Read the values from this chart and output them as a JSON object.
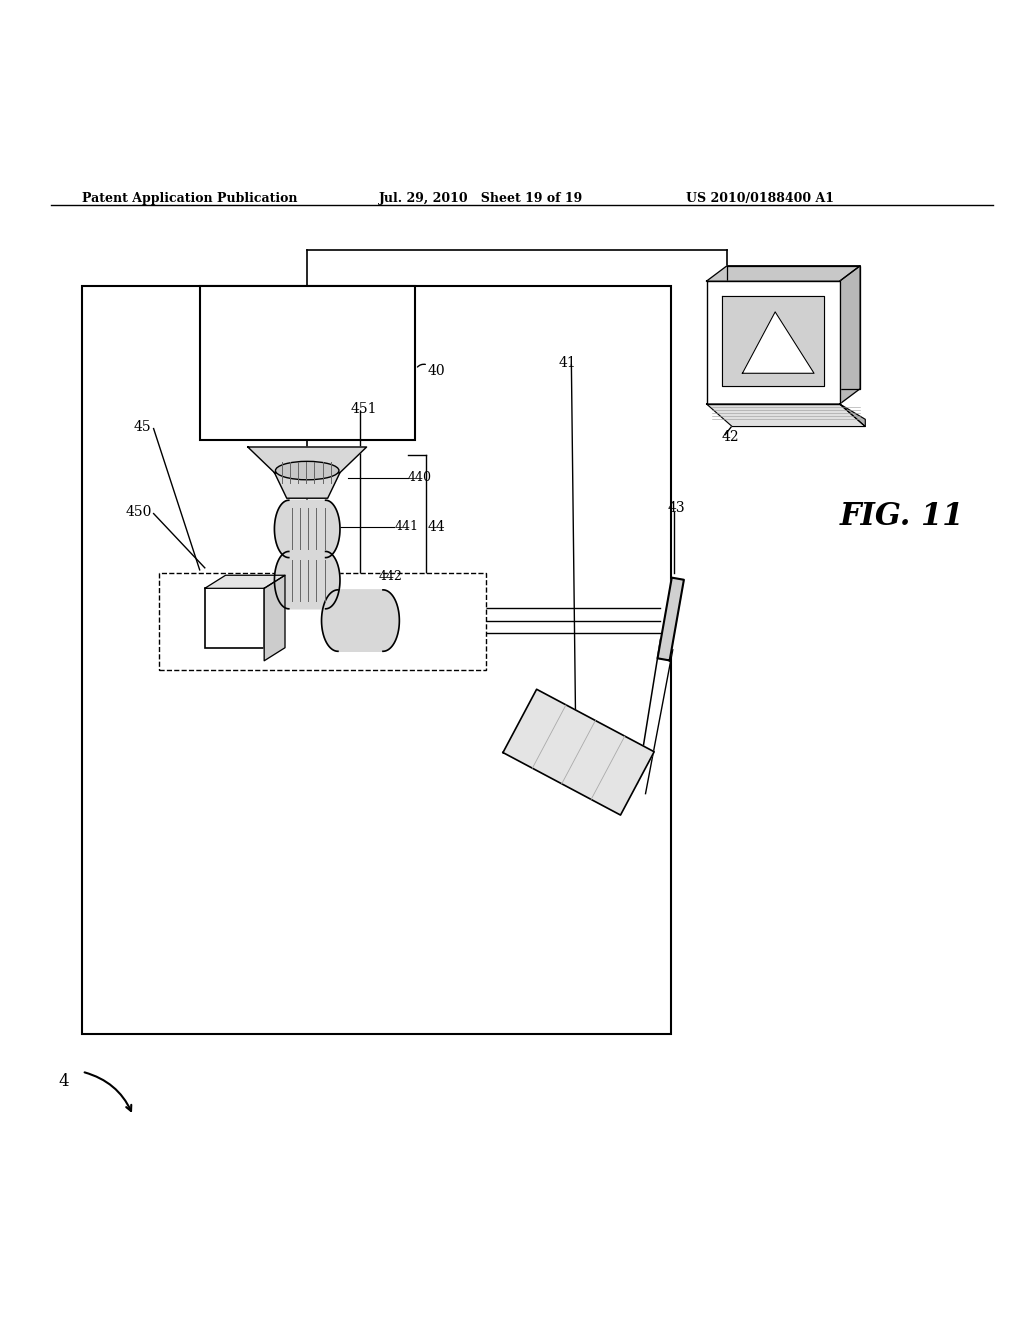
{
  "header_left": "Patent Application Publication",
  "header_mid": "Jul. 29, 2010   Sheet 19 of 19",
  "header_right": "US 2010/0188400 A1",
  "fig_label": "FIG. 11",
  "bg_color": "#ffffff",
  "line_color": "#000000",
  "gray_color": "#888888",
  "light_gray": "#cccccc"
}
